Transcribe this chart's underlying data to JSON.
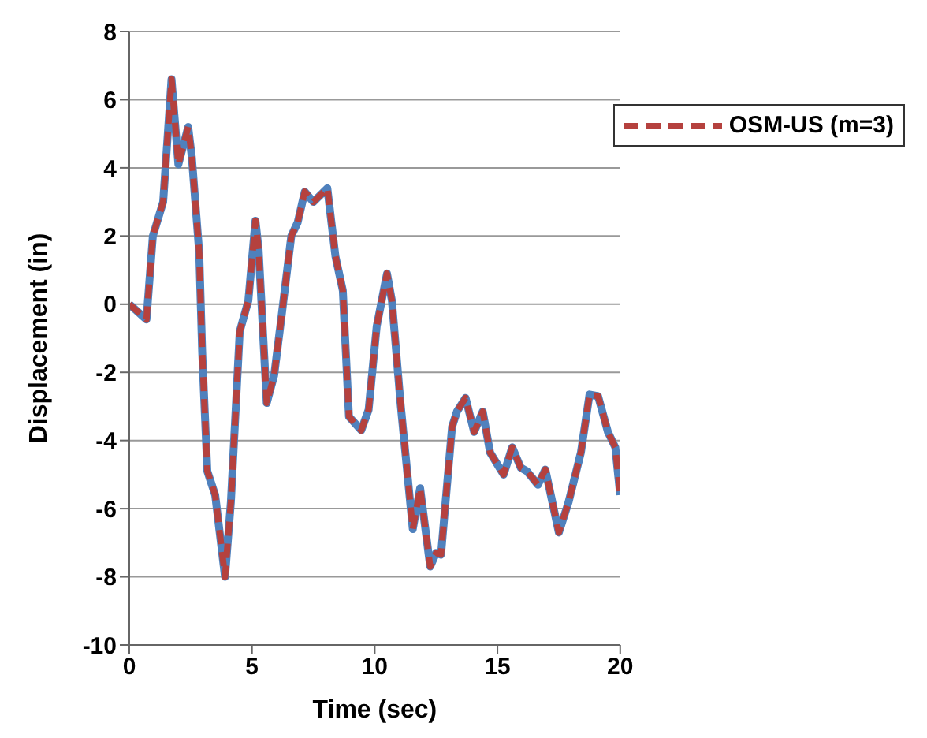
{
  "chart_data": {
    "type": "line",
    "xlabel": "Time (sec)",
    "ylabel": "Displacement (in)",
    "x": [
      0,
      0.7,
      0.96,
      1.38,
      1.72,
      2.0,
      2.4,
      2.55,
      2.85,
      2.97,
      3.18,
      3.5,
      3.9,
      4.14,
      4.5,
      4.85,
      5.14,
      5.27,
      5.6,
      5.9,
      6.23,
      6.6,
      6.86,
      7.15,
      7.5,
      8.07,
      8.4,
      8.7,
      8.95,
      9.45,
      9.75,
      10.08,
      10.5,
      10.7,
      11.05,
      11.55,
      11.85,
      12.26,
      12.5,
      12.7,
      13.15,
      13.35,
      13.7,
      14.05,
      14.4,
      14.7,
      15.25,
      15.6,
      15.95,
      16.2,
      16.65,
      16.95,
      17.5,
      17.9,
      18.4,
      18.75,
      19.1,
      19.5,
      19.8,
      20
    ],
    "series": [
      {
        "color": "#4f81bd",
        "line_style": "solid",
        "values": [
          0,
          -0.45,
          2.0,
          3.0,
          6.6,
          4.1,
          5.2,
          4.3,
          1.5,
          -1.4,
          -4.9,
          -5.6,
          -8.0,
          -5.8,
          -0.8,
          0.1,
          2.45,
          1.6,
          -2.9,
          -2.1,
          -0.2,
          2.0,
          2.4,
          3.3,
          3.0,
          3.4,
          1.4,
          0.4,
          -3.3,
          -3.7,
          -3.1,
          -0.65,
          0.9,
          0.1,
          -2.9,
          -6.6,
          -5.4,
          -7.7,
          -7.3,
          -7.35,
          -3.6,
          -3.15,
          -2.75,
          -3.75,
          -3.15,
          -4.35,
          -5.0,
          -4.2,
          -4.8,
          -4.9,
          -5.3,
          -4.85,
          -6.7,
          -5.8,
          -4.35,
          -2.65,
          -2.7,
          -3.75,
          -4.2,
          -5.6
        ]
      },
      {
        "name": "OSM-US (m=3)",
        "color": "#b5413e",
        "line_style": "dashed",
        "values": [
          0,
          -0.45,
          2.0,
          3.0,
          6.6,
          4.1,
          5.2,
          4.3,
          1.5,
          -1.4,
          -4.9,
          -5.6,
          -8.0,
          -5.8,
          -0.8,
          0.1,
          2.45,
          1.6,
          -2.9,
          -2.1,
          -0.2,
          2.0,
          2.4,
          3.3,
          3.0,
          3.4,
          1.4,
          0.4,
          -3.3,
          -3.7,
          -3.1,
          -0.65,
          0.9,
          0.1,
          -2.9,
          -6.6,
          -5.4,
          -7.7,
          -7.3,
          -7.35,
          -3.6,
          -3.15,
          -2.75,
          -3.75,
          -3.15,
          -4.35,
          -5.0,
          -4.2,
          -4.8,
          -4.9,
          -5.3,
          -4.85,
          -6.7,
          -5.8,
          -4.35,
          -2.65,
          -2.7,
          -3.75,
          -4.2,
          -5.6
        ]
      }
    ],
    "xlim": [
      0,
      20
    ],
    "xticks": [
      0,
      5,
      10,
      15,
      20
    ],
    "ylim": [
      -10,
      8
    ],
    "yticks": [
      -10,
      -8,
      -6,
      -4,
      -2,
      0,
      2,
      4,
      6,
      8
    ],
    "grid": "y",
    "legend": "top right",
    "marker": "none"
  }
}
